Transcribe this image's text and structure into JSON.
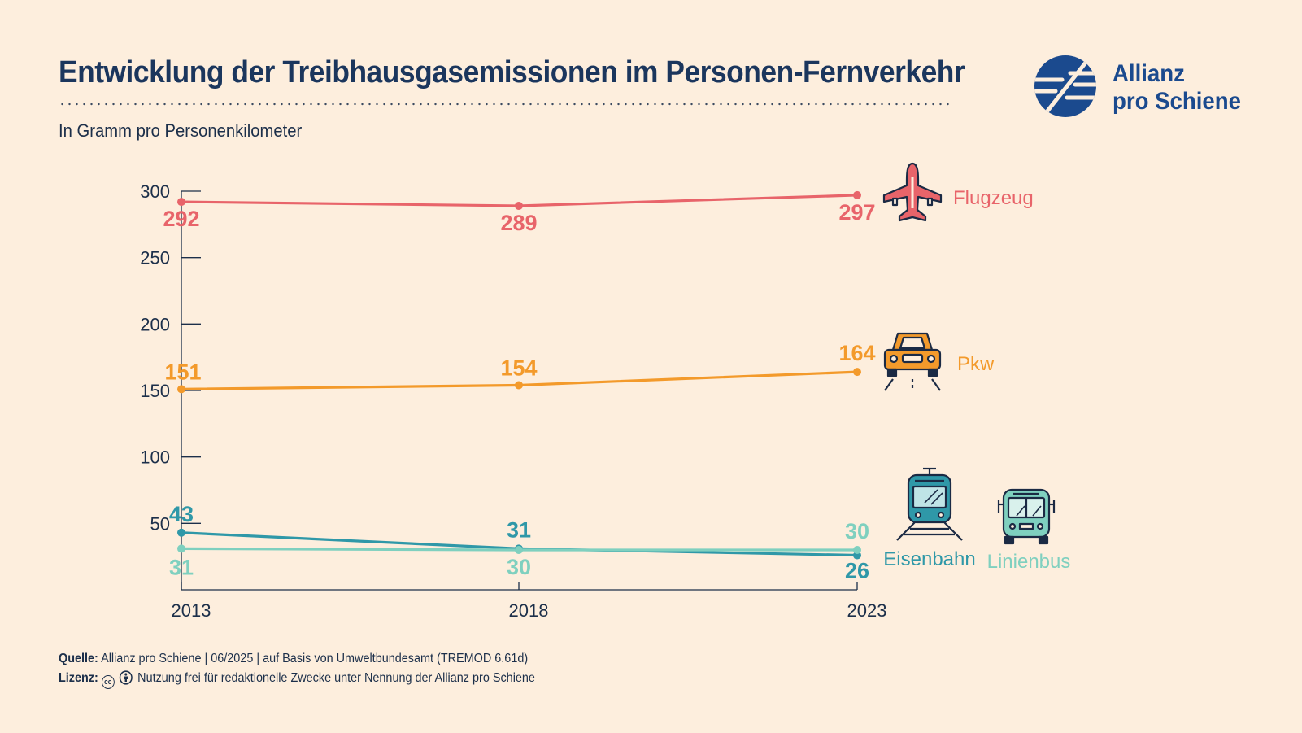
{
  "header": {
    "title": "Entwicklung der Treibhausgasemissionen im Personen-Fernverkehr",
    "subtitle": "In Gramm pro Personenkilometer"
  },
  "logo": {
    "line1": "Allianz",
    "line2": "pro Schiene",
    "icon": "allianz-pro-schiene-logo-icon"
  },
  "footer": {
    "source_label": "Quelle:",
    "source_text": "Allianz pro Schiene | 06/2025 | auf Basis von Umweltbundesamt (TREMOD 6.61d)",
    "license_label": "Lizenz:",
    "license_text": "Nutzung frei für redaktionelle Zwecke unter Nennung der Allianz pro Schiene",
    "license_icons": [
      "cc-icon",
      "by-person-icon"
    ]
  },
  "chart_data": {
    "type": "line",
    "x": [
      "2013",
      "2018",
      "2023"
    ],
    "ylim": [
      0,
      300
    ],
    "yticks": [
      "50",
      "100",
      "150",
      "200",
      "250",
      "300"
    ],
    "grid": false,
    "series": [
      {
        "name": "Flugzeug",
        "values": [
          292,
          289,
          297
        ],
        "color": "#e8646a",
        "icon": "airplane-icon"
      },
      {
        "name": "Pkw",
        "values": [
          151,
          154,
          164
        ],
        "color": "#f39a2b",
        "icon": "car-icon"
      },
      {
        "name": "Eisenbahn",
        "values": [
          43,
          31,
          26
        ],
        "color": "#2f98a8",
        "icon": "train-icon"
      },
      {
        "name": "Linienbus",
        "values": [
          31,
          30,
          30
        ],
        "color": "#7fd0bf",
        "icon": "bus-icon"
      }
    ]
  }
}
